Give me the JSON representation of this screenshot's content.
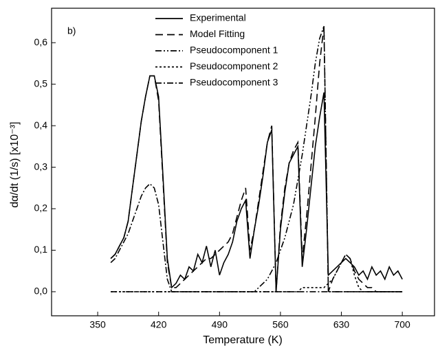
{
  "chart_data": {
    "type": "line",
    "annotation": "b)",
    "x_label": "Temperature (K)",
    "y_label": "dα/dt (1/s) [x10⁻³]",
    "x": [
      365,
      370,
      375,
      380,
      385,
      390,
      395,
      400,
      405,
      410,
      415,
      420,
      425,
      430,
      435,
      440,
      445,
      450,
      455,
      460,
      465,
      470,
      475,
      480,
      485,
      490,
      495,
      500,
      505,
      510,
      515,
      520,
      525,
      530,
      535,
      540,
      545,
      550,
      555,
      560,
      565,
      570,
      575,
      580,
      585,
      590,
      595,
      600,
      605,
      610,
      615,
      620,
      625,
      630,
      635,
      640,
      645,
      650,
      655,
      660,
      665,
      670,
      675,
      680,
      685,
      690,
      695,
      700
    ],
    "series": [
      {
        "name": "Experimental",
        "color": "#000000",
        "style": "solid",
        "values": [
          0.08,
          0.09,
          0.11,
          0.13,
          0.17,
          0.25,
          0.33,
          0.41,
          0.47,
          0.52,
          0.52,
          0.47,
          0.28,
          0.08,
          0.01,
          0.02,
          0.04,
          0.03,
          0.06,
          0.05,
          0.09,
          0.07,
          0.11,
          0.06,
          0.1,
          0.04,
          0.07,
          0.09,
          0.12,
          0.17,
          0.2,
          0.22,
          0.08,
          0.15,
          0.21,
          0.28,
          0.36,
          0.39,
          0.0,
          0.15,
          0.24,
          0.31,
          0.33,
          0.35,
          0.06,
          0.15,
          0.25,
          0.35,
          0.42,
          0.48,
          0.04,
          0.05,
          0.06,
          0.07,
          0.08,
          0.07,
          0.06,
          0.04,
          0.05,
          0.03,
          0.06,
          0.04,
          0.05,
          0.03,
          0.06,
          0.04,
          0.05,
          0.03
        ]
      },
      {
        "name": "Model Fitting",
        "color": "#000000",
        "style": "dashed",
        "values": [
          0.08,
          0.09,
          0.11,
          0.13,
          0.17,
          0.25,
          0.33,
          0.41,
          0.47,
          0.52,
          0.52,
          0.46,
          0.27,
          0.07,
          0.01,
          0.01,
          0.02,
          0.03,
          0.04,
          0.05,
          0.06,
          0.07,
          0.08,
          0.08,
          0.09,
          0.1,
          0.11,
          0.12,
          0.14,
          0.18,
          0.22,
          0.25,
          0.1,
          0.15,
          0.22,
          0.29,
          0.36,
          0.4,
          0.0,
          0.16,
          0.25,
          0.31,
          0.34,
          0.36,
          0.08,
          0.18,
          0.3,
          0.42,
          0.55,
          0.64,
          0.0,
          0.03,
          0.05,
          0.07,
          0.09,
          0.08,
          0.05,
          0.03,
          0.02,
          0.01,
          0.01,
          0,
          0,
          0,
          0,
          0,
          0,
          0
        ]
      },
      {
        "name": "Pseudocomponent 1",
        "color": "#000000",
        "style": "dash-dot-dot",
        "values": [
          0,
          0,
          0,
          0,
          0,
          0,
          0,
          0,
          0,
          0,
          0,
          0,
          0,
          0,
          0,
          0,
          0,
          0,
          0,
          0,
          0,
          0,
          0,
          0,
          0,
          0,
          0,
          0,
          0,
          0,
          0,
          0,
          0,
          0,
          0.01,
          0.02,
          0.03,
          0.05,
          0.07,
          0.1,
          0.13,
          0.17,
          0.21,
          0.27,
          0.33,
          0.4,
          0.47,
          0.55,
          0.61,
          0.64,
          0,
          0,
          0,
          0,
          0,
          0,
          0,
          0,
          0,
          0,
          0,
          0,
          0,
          0,
          0,
          0,
          0,
          0
        ]
      },
      {
        "name": "Pseudocomponent 2",
        "color": "#000000",
        "style": "short-dash",
        "values": [
          0,
          0,
          0,
          0,
          0,
          0,
          0,
          0,
          0,
          0,
          0,
          0,
          0,
          0,
          0,
          0,
          0,
          0,
          0,
          0,
          0,
          0,
          0,
          0,
          0,
          0,
          0,
          0,
          0,
          0,
          0,
          0,
          0,
          0,
          0,
          0,
          0,
          0,
          0,
          0,
          0,
          0,
          0,
          0,
          0.01,
          0.01,
          0.01,
          0.01,
          0.01,
          0.01,
          0.02,
          0.03,
          0.05,
          0.07,
          0.09,
          0.08,
          0.04,
          0.01,
          0,
          0,
          0,
          0,
          0,
          0,
          0,
          0,
          0,
          0
        ]
      },
      {
        "name": "Pseudocomponent 3",
        "color": "#000000",
        "style": "dash-dot",
        "values": [
          0.07,
          0.08,
          0.1,
          0.12,
          0.14,
          0.17,
          0.2,
          0.23,
          0.25,
          0.26,
          0.25,
          0.21,
          0.12,
          0.03,
          0,
          0,
          0,
          0,
          0,
          0,
          0,
          0,
          0,
          0,
          0,
          0,
          0,
          0,
          0,
          0,
          0,
          0,
          0,
          0,
          0,
          0,
          0,
          0,
          0,
          0,
          0,
          0,
          0,
          0,
          0,
          0,
          0,
          0,
          0,
          0,
          0,
          0,
          0,
          0,
          0,
          0,
          0,
          0,
          0,
          0,
          0,
          0,
          0,
          0,
          0,
          0,
          0,
          0
        ]
      }
    ],
    "xlim": [
      297,
      737
    ],
    "xticks": [
      350,
      420,
      490,
      560,
      630,
      700
    ],
    "ylim": [
      -0.058,
      0.683
    ],
    "yticks": [
      {
        "value": 0,
        "label": "0,0"
      },
      {
        "value": 0.1,
        "label": "0,1"
      },
      {
        "value": 0.2,
        "label": "0,2"
      },
      {
        "value": 0.3,
        "label": "0,3"
      },
      {
        "value": 0.4,
        "label": "0,4"
      },
      {
        "value": 0.5,
        "label": "0,5"
      },
      {
        "value": 0.6,
        "label": "0,6"
      }
    ],
    "grid": false,
    "legend": "top"
  }
}
